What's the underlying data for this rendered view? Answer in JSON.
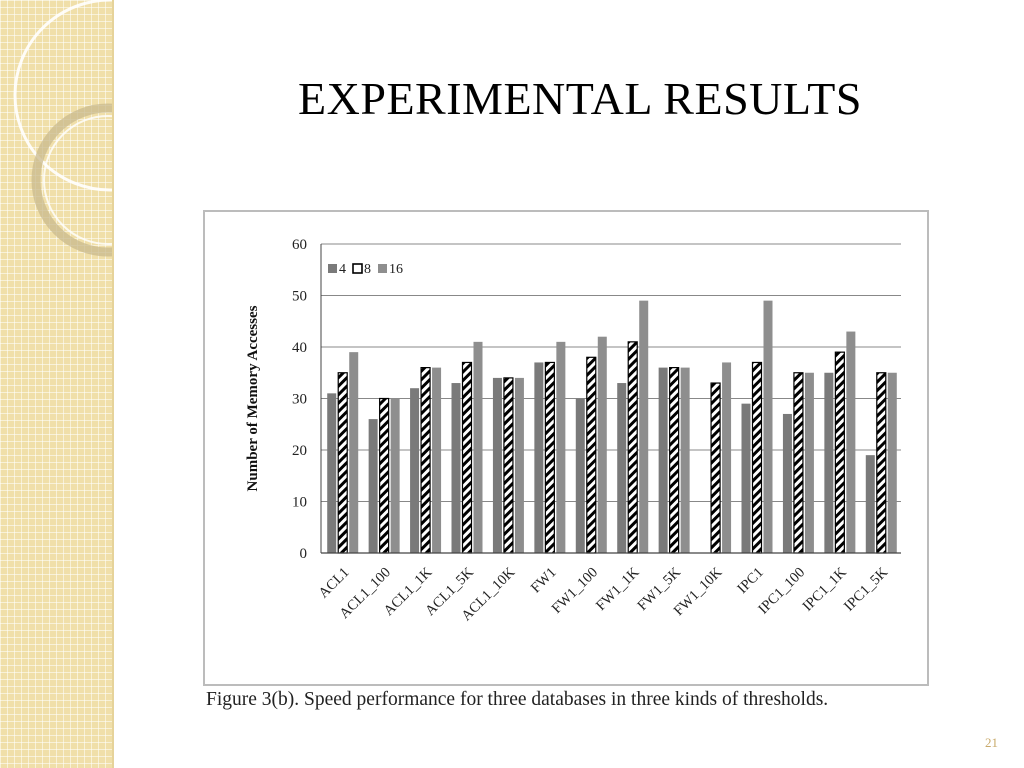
{
  "slide": {
    "title": "EXPERIMENTAL RESULTS",
    "caption": "Figure 3(b). Speed performance for three databases in three kinds of thresholds.",
    "page_number": "21"
  },
  "colors": {
    "sidebar": "#f0dfa9",
    "series_4": "#7f7f7f",
    "series_16": "#8c8c8c",
    "stripe": "#000000",
    "grid": "#888888"
  },
  "chart_data": {
    "type": "bar",
    "title": "",
    "xlabel": "",
    "ylabel": "Number of Memory Accesses",
    "ylim": [
      0,
      60
    ],
    "yticks": [
      0,
      10,
      20,
      30,
      40,
      50,
      60
    ],
    "grid": true,
    "legend": "top-left",
    "categories": [
      "ACL1",
      "ACL1_100",
      "ACL1_1K",
      "ACL1_5K",
      "ACL1_10K",
      "FW1",
      "FW1_100",
      "FW1_1K",
      "FW1_5K",
      "FW1_10K",
      "IPC1",
      "IPC1_100",
      "IPC1_1K",
      "IPC1_5K"
    ],
    "series": [
      {
        "name": "4",
        "pattern": "solid-dark",
        "values": [
          31,
          26,
          32,
          33,
          34,
          37,
          30,
          33,
          36,
          0,
          29,
          27,
          35,
          19
        ]
      },
      {
        "name": "8",
        "pattern": "hatched",
        "values": [
          35,
          30,
          36,
          37,
          34,
          37,
          38,
          41,
          36,
          33,
          37,
          35,
          39,
          35
        ]
      },
      {
        "name": "16",
        "pattern": "solid-light",
        "values": [
          39,
          30,
          36,
          41,
          34,
          41,
          42,
          49,
          36,
          37,
          49,
          35,
          43,
          35
        ]
      }
    ]
  }
}
